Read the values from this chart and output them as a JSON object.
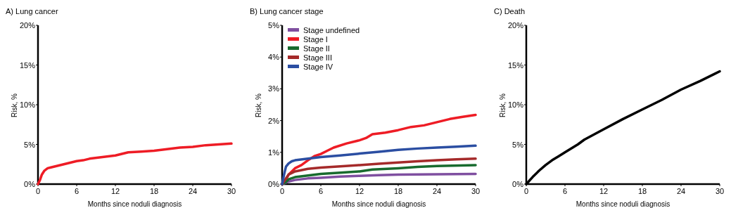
{
  "chart_data": [
    {
      "type": "line",
      "title": "A) Lung cancer",
      "xlabel": "Months since noduli diagnosis",
      "ylabel": "Risk, %",
      "xlim": [
        0,
        30
      ],
      "xticks": [
        0,
        6,
        12,
        18,
        24,
        30
      ],
      "ylim": [
        0,
        20
      ],
      "yticks": [
        {
          "value": 0,
          "label": "0%"
        },
        {
          "value": 5,
          "label": "5%"
        },
        {
          "value": 10,
          "label": "10%"
        },
        {
          "value": 15,
          "label": "15%"
        },
        {
          "value": 20,
          "label": "20%"
        }
      ],
      "series": [
        {
          "color": "#ee1c25",
          "x": [
            0,
            0.3,
            0.6,
            1,
            1.5,
            2,
            3,
            4,
            5,
            6,
            7,
            8,
            10,
            12,
            13,
            14,
            16,
            18,
            20,
            22,
            24,
            26,
            28,
            30
          ],
          "values": [
            0,
            0.5,
            1.2,
            1.7,
            2.0,
            2.1,
            2.3,
            2.5,
            2.7,
            2.9,
            3.0,
            3.2,
            3.4,
            3.6,
            3.8,
            4.0,
            4.1,
            4.2,
            4.4,
            4.6,
            4.7,
            4.9,
            5.0,
            5.1
          ]
        }
      ]
    },
    {
      "type": "line",
      "title": "B) Lung cancer stage",
      "xlabel": "Months since noduli diagnosis",
      "ylabel": "Risk, %",
      "xlim": [
        0,
        30
      ],
      "xticks": [
        0,
        6,
        12,
        18,
        24,
        30
      ],
      "ylim": [
        0,
        5
      ],
      "yticks": [
        {
          "value": 0,
          "label": "0%"
        },
        {
          "value": 1,
          "label": "1%"
        },
        {
          "value": 2,
          "label": "2%"
        },
        {
          "value": 3,
          "label": "3%"
        },
        {
          "value": 4,
          "label": "4%"
        },
        {
          "value": 5,
          "label": "5%"
        }
      ],
      "legend": "top left",
      "series": [
        {
          "name": "Stage undefined",
          "color": "#7f4fa0",
          "x": [
            0,
            1,
            2,
            4,
            6,
            9,
            12,
            15,
            18,
            24,
            30
          ],
          "values": [
            0,
            0.08,
            0.13,
            0.18,
            0.2,
            0.24,
            0.26,
            0.28,
            0.3,
            0.31,
            0.32
          ]
        },
        {
          "name": "Stage I",
          "color": "#ee1c25",
          "x": [
            0,
            0.5,
            1,
            2,
            3,
            4,
            5,
            6,
            7,
            8,
            10,
            12,
            13,
            14,
            16,
            18,
            20,
            22,
            24,
            25,
            26,
            28,
            30
          ],
          "values": [
            0,
            0.1,
            0.3,
            0.5,
            0.6,
            0.75,
            0.88,
            0.95,
            1.05,
            1.15,
            1.28,
            1.38,
            1.45,
            1.57,
            1.62,
            1.7,
            1.8,
            1.85,
            1.95,
            2.0,
            2.05,
            2.12,
            2.18
          ]
        },
        {
          "name": "Stage II",
          "color": "#186b2e",
          "x": [
            0,
            0.5,
            1,
            2,
            4,
            6,
            9,
            12,
            14,
            18,
            21,
            24,
            30
          ],
          "values": [
            0,
            0.05,
            0.15,
            0.22,
            0.27,
            0.32,
            0.36,
            0.4,
            0.46,
            0.5,
            0.54,
            0.57,
            0.6
          ]
        },
        {
          "name": "Stage III",
          "color": "#a52a2a",
          "x": [
            0,
            0.5,
            1,
            2,
            4,
            6,
            9,
            12,
            15,
            18,
            21,
            24,
            27,
            30
          ],
          "values": [
            0,
            0.15,
            0.3,
            0.4,
            0.48,
            0.52,
            0.56,
            0.6,
            0.64,
            0.68,
            0.72,
            0.75,
            0.78,
            0.8
          ]
        },
        {
          "name": "Stage IV",
          "color": "#2b4ea2",
          "x": [
            0,
            0.3,
            0.6,
            1,
            1.5,
            2,
            4,
            6,
            9,
            12,
            15,
            18,
            21,
            24,
            27,
            30
          ],
          "values": [
            0,
            0.3,
            0.55,
            0.65,
            0.72,
            0.75,
            0.8,
            0.85,
            0.9,
            0.96,
            1.02,
            1.08,
            1.12,
            1.15,
            1.18,
            1.21
          ]
        }
      ]
    },
    {
      "type": "line",
      "title": "C) Death",
      "xlabel": "Months since noduli diagnosis",
      "ylabel": "Risk, %",
      "xlim": [
        0,
        30
      ],
      "xticks": [
        0,
        6,
        12,
        18,
        24,
        30
      ],
      "ylim": [
        0,
        20
      ],
      "yticks": [
        {
          "value": 0,
          "label": "0%"
        },
        {
          "value": 5,
          "label": "5%"
        },
        {
          "value": 10,
          "label": "10%"
        },
        {
          "value": 15,
          "label": "15%"
        },
        {
          "value": 20,
          "label": "20%"
        }
      ],
      "series": [
        {
          "color": "#000000",
          "x": [
            0,
            1,
            2,
            3,
            4,
            5,
            6,
            8,
            9,
            12,
            15,
            18,
            21,
            24,
            27,
            30
          ],
          "values": [
            0,
            0.9,
            1.7,
            2.4,
            3.0,
            3.5,
            4.0,
            5.0,
            5.6,
            6.9,
            8.2,
            9.4,
            10.6,
            11.9,
            13.0,
            14.2
          ]
        }
      ]
    }
  ]
}
